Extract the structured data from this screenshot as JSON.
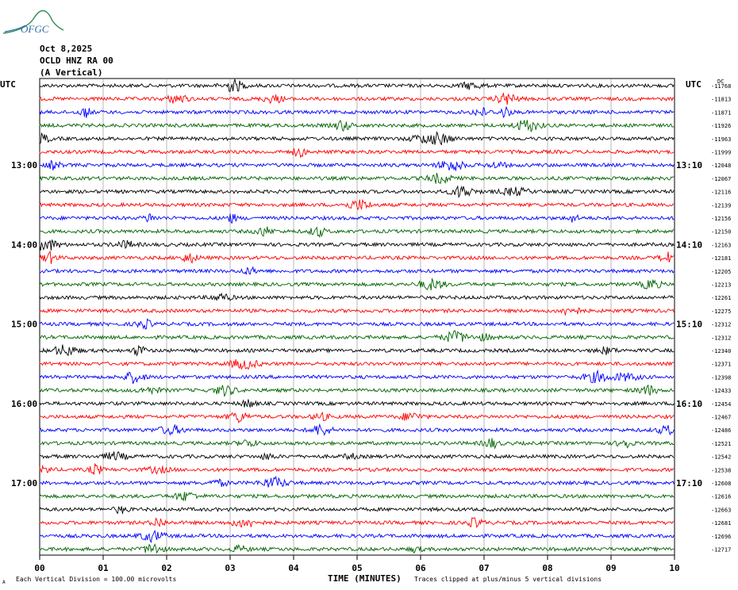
{
  "header": {
    "date": "Oct 8,2025",
    "station": "OCLD HNZ RA 00",
    "component": "(A Vertical)"
  },
  "logo": {
    "text": "OFGC",
    "color": "#2e8b57"
  },
  "chart_data": {
    "type": "seismogram",
    "left_axis_label": "UTC",
    "right_axis_label": "UTC",
    "right_top_label": "DC",
    "left_hour_labels": [
      "13:00",
      "14:00",
      "15:00",
      "16:00",
      "17:00"
    ],
    "right_hour_labels": [
      "13:10",
      "14:10",
      "15:10",
      "16:10",
      "17:10"
    ],
    "x_tick_labels": [
      "00",
      "01",
      "02",
      "03",
      "04",
      "05",
      "06",
      "07",
      "08",
      "09",
      "10"
    ],
    "xlabel": "TIME (MINUTES)",
    "footer_scale": "Each Vertical Division =  100.00 microvolts",
    "footer_clip": "Traces clipped at plus/minus 5 vertical divisions",
    "footer_mark": "A",
    "trace_colors": [
      "#000000",
      "#ff0000",
      "#0000ff",
      "#006400"
    ],
    "dc_offsets": [
      "-11768",
      "-11813",
      "-11871",
      "-11926",
      "-11963",
      "-11999",
      "-12048",
      "-12067",
      "-12116",
      "-12139",
      "-12156",
      "-12150",
      "-12163",
      "-12181",
      "-12205",
      "-12213",
      "-12261",
      "-12275",
      "-12312",
      "-12312",
      "-12340",
      "-12371",
      "-12398",
      "-12433",
      "-12454",
      "-12467",
      "-12486",
      "-12521",
      "-12542",
      "-12538",
      "-12608",
      "-12616",
      "-12663",
      "-12681",
      "-12696",
      "-12717"
    ]
  }
}
